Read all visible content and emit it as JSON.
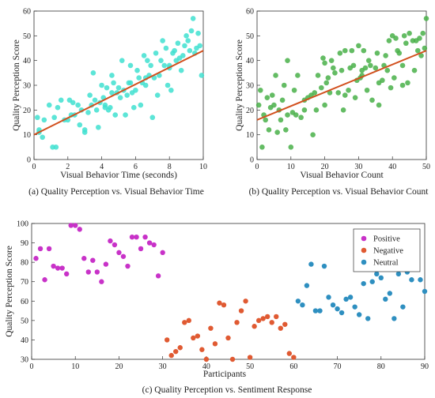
{
  "chart_data": [
    {
      "type": "scatter",
      "xlabel": "Visual Behavior Time (seconds)",
      "ylabel": "Quality Perception Score",
      "caption": "(a) Quality Perception vs. Visual Behavior Time",
      "xlim": [
        0,
        10
      ],
      "ylim": [
        0,
        60
      ],
      "xticks": [
        0,
        2,
        4,
        6,
        8,
        10
      ],
      "yticks": [
        0,
        10,
        20,
        30,
        40,
        50,
        60
      ],
      "grid": false,
      "point_color": "#40e0d0",
      "trend_color": "#d2501e",
      "trendline": [
        [
          0,
          10
        ],
        [
          10,
          44
        ]
      ],
      "x": [
        0.2,
        0.3,
        0.5,
        0.3,
        0.6,
        0.9,
        1.1,
        1.2,
        1.3,
        1.4,
        1.6,
        1.8,
        2.0,
        2.1,
        2.2,
        2.3,
        2.4,
        2.6,
        2.8,
        3.0,
        3.0,
        3.2,
        3.4,
        3.5,
        3.6,
        3.7,
        3.8,
        3.9,
        4.0,
        4.1,
        4.2,
        4.3,
        4.4,
        4.5,
        4.6,
        4.6,
        4.7,
        4.8,
        4.9,
        5.0,
        5.1,
        5.2,
        5.3,
        5.4,
        5.5,
        5.6,
        5.7,
        5.8,
        5.9,
        6.0,
        6.1,
        6.2,
        6.3,
        6.4,
        6.5,
        6.6,
        6.7,
        6.8,
        6.9,
        7.0,
        7.1,
        7.2,
        7.3,
        7.4,
        7.5,
        7.6,
        7.7,
        7.8,
        7.9,
        8.0,
        8.1,
        8.2,
        8.3,
        8.4,
        8.5,
        8.6,
        8.7,
        8.8,
        8.9,
        9.0,
        9.1,
        9.2,
        9.3,
        9.4,
        9.5,
        9.6,
        9.7,
        9.8,
        9.9,
        4.2,
        3.3,
        6.6,
        8.0,
        5.7,
        2.7
      ],
      "y": [
        17,
        11,
        9,
        12,
        16,
        22,
        5,
        17,
        5,
        21,
        24,
        16,
        16,
        24,
        18,
        23,
        18,
        22,
        20,
        12,
        11,
        19,
        22,
        35,
        24,
        20,
        13,
        23,
        30,
        25,
        22,
        29,
        20,
        21,
        34,
        27,
        31,
        18,
        27,
        29,
        25,
        40,
        28,
        18,
        26,
        31,
        38,
        27,
        21,
        28,
        36,
        33,
        22,
        31,
        42,
        30,
        40,
        34,
        38,
        17,
        33,
        43,
        26,
        34,
        40,
        48,
        38,
        45,
        30,
        37,
        28,
        43,
        44,
        40,
        47,
        41,
        36,
        42,
        46,
        50,
        48,
        44,
        52,
        57,
        43,
        45,
        51,
        46,
        34,
        21,
        26,
        33,
        38,
        31,
        14
      ]
    },
    {
      "type": "scatter",
      "xlabel": "Visual Behavior Count",
      "ylabel": "Quality Perception Score",
      "caption": "(b) Quality Perception vs. Visual Behavior Count",
      "xlim": [
        0,
        50
      ],
      "ylim": [
        0,
        60
      ],
      "xticks": [
        0,
        10,
        20,
        30,
        40,
        50
      ],
      "yticks": [
        0,
        10,
        20,
        30,
        40,
        50,
        60
      ],
      "grid": false,
      "point_color": "#49b049",
      "trend_color": "#d2501e",
      "trendline": [
        [
          0,
          16
        ],
        [
          50,
          44
        ]
      ],
      "x": [
        0.5,
        1,
        1.5,
        2,
        2.5,
        3,
        3.5,
        4,
        4.5,
        5,
        5.5,
        6,
        6.5,
        7,
        7.5,
        8,
        8.5,
        9,
        10,
        10.5,
        11,
        11.5,
        12,
        13,
        14,
        15,
        16,
        16.5,
        17,
        17.5,
        18,
        19,
        19.5,
        20,
        20.5,
        21,
        21.5,
        22,
        22.5,
        23,
        24,
        24.5,
        25,
        25.5,
        26,
        27,
        27.5,
        28,
        28.5,
        29,
        29.5,
        30,
        30.5,
        31,
        31.5,
        32,
        32.5,
        33,
        33.5,
        34,
        35,
        35.5,
        36,
        37,
        37.5,
        38,
        38.5,
        39,
        39.5,
        40,
        40.5,
        41,
        41.5,
        42,
        43,
        43.5,
        44,
        44.5,
        45,
        46,
        46.5,
        47,
        47.5,
        48,
        48.5,
        49,
        49.5,
        50,
        9,
        14,
        26,
        36,
        43,
        20,
        31
      ],
      "y": [
        22,
        28,
        5,
        18,
        16,
        25,
        12,
        21,
        26,
        22,
        34,
        11,
        20,
        16,
        24,
        30,
        12,
        18,
        5,
        19,
        28,
        18,
        34,
        17,
        24,
        25,
        26,
        10,
        27,
        20,
        34,
        29,
        41,
        39,
        31,
        33,
        27,
        40,
        37,
        35,
        27,
        43,
        36,
        20,
        44,
        28,
        37,
        44,
        38,
        25,
        32,
        46,
        33,
        34,
        44,
        37,
        28,
        40,
        38,
        24,
        37,
        43,
        22,
        32,
        38,
        42,
        36,
        48,
        29,
        50,
        33,
        49,
        44,
        43,
        38,
        50,
        47,
        31,
        51,
        48,
        36,
        48,
        44,
        49,
        42,
        51,
        45,
        57,
        40,
        20,
        26,
        31,
        30,
        22,
        36
      ]
    },
    {
      "type": "scatter",
      "xlabel": "Participants",
      "ylabel": "Quality Perception Score",
      "caption": "(c) Quality Perception vs. Sentiment Response",
      "xlim": [
        0,
        90
      ],
      "ylim": [
        30,
        100
      ],
      "xticks": [
        0,
        10,
        20,
        30,
        40,
        50,
        60,
        70,
        80,
        90
      ],
      "yticks": [
        30,
        40,
        50,
        60,
        70,
        80,
        90,
        100
      ],
      "grid": false,
      "legend": "top-right",
      "series": [
        {
          "name": "Positive",
          "color": "#c832c8",
          "x": [
            1,
            2,
            3,
            4,
            5,
            6,
            7,
            8,
            9,
            10,
            11,
            12,
            13,
            14,
            15,
            16,
            17,
            18,
            19,
            20,
            21,
            22,
            23,
            24,
            25,
            26,
            27,
            28,
            29,
            30
          ],
          "y": [
            82,
            87,
            71,
            87,
            78,
            77,
            77,
            74,
            99,
            99,
            97,
            82,
            75,
            81,
            75,
            70,
            79,
            91,
            89,
            85,
            83,
            78,
            93,
            93,
            87,
            93,
            90,
            89,
            73,
            85
          ]
        },
        {
          "name": "Negative",
          "color": "#e05a32",
          "x": [
            31,
            32,
            33,
            34,
            35,
            36,
            37,
            38,
            39,
            40,
            41,
            42,
            43,
            44,
            45,
            46,
            47,
            48,
            49,
            50,
            51,
            52,
            53,
            54,
            55,
            56,
            57,
            58,
            59,
            60
          ],
          "y": [
            40,
            32,
            34,
            36,
            49,
            50,
            41,
            42,
            35,
            30,
            46,
            38,
            59,
            58,
            41,
            30,
            49,
            55,
            60,
            31,
            47,
            50,
            51,
            52,
            49,
            52,
            46,
            48,
            33,
            31
          ]
        },
        {
          "name": "Neutral",
          "color": "#2e8fc0",
          "x": [
            61,
            62,
            63,
            64,
            65,
            66,
            67,
            68,
            69,
            70,
            71,
            72,
            73,
            74,
            75,
            76,
            77,
            78,
            79,
            80,
            81,
            82,
            83,
            84,
            85,
            86,
            87,
            88,
            89,
            90
          ],
          "y": [
            60,
            58,
            68,
            79,
            55,
            55,
            78,
            62,
            58,
            56,
            54,
            61,
            62,
            57,
            53,
            69,
            51,
            70,
            74,
            72,
            61,
            64,
            51,
            74,
            57,
            75,
            71,
            80,
            71,
            65
          ]
        }
      ]
    }
  ]
}
